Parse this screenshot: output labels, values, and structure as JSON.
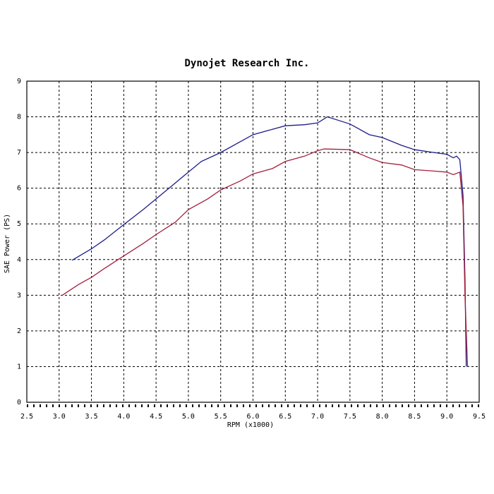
{
  "chart_data": {
    "type": "line",
    "title": "Dynojet Research Inc.",
    "xlabel": "RPM (x1000)",
    "ylabel": "SAE Power (PS)",
    "xlim": [
      2.5,
      9.5
    ],
    "ylim": [
      0,
      9
    ],
    "xticks": [
      2.5,
      {
        "value": 3,
        "label": "3.0"
      },
      3.5,
      {
        "value": 4,
        "label": "4.0"
      },
      4.5,
      {
        "value": 5,
        "label": "5.0"
      },
      5.5,
      {
        "value": 6,
        "label": "6.0"
      },
      6.5,
      {
        "value": 7,
        "label": "7.0"
      },
      7.5,
      {
        "value": 8,
        "label": "8.0"
      },
      8.5,
      {
        "value": 9,
        "label": "9.0"
      },
      9.5
    ],
    "yticks": [
      0,
      1,
      2,
      3,
      4,
      5,
      6,
      7,
      8,
      9
    ],
    "grid": true,
    "series": [
      {
        "color": "#1c1c8a",
        "x": [
          3.2,
          3.5,
          3.7,
          4.0,
          4.3,
          4.5,
          4.8,
          5.0,
          5.2,
          5.5,
          5.8,
          6.0,
          6.3,
          6.5,
          6.8,
          7.0,
          7.15,
          7.5,
          7.8,
          8.0,
          8.3,
          8.5,
          8.8,
          9.0,
          9.1,
          9.15,
          9.2,
          9.25,
          9.28,
          9.3
        ],
        "values": [
          3.98,
          4.3,
          4.55,
          4.98,
          5.4,
          5.7,
          6.15,
          6.45,
          6.75,
          7.0,
          7.3,
          7.5,
          7.65,
          7.75,
          7.78,
          7.83,
          8.0,
          7.8,
          7.5,
          7.42,
          7.2,
          7.08,
          7.0,
          6.95,
          6.85,
          6.9,
          6.8,
          5.8,
          3.5,
          1.0
        ]
      },
      {
        "color": "#a3203c",
        "x": [
          3.05,
          3.3,
          3.5,
          3.7,
          4.0,
          4.3,
          4.5,
          4.8,
          5.0,
          5.3,
          5.5,
          5.8,
          6.0,
          6.3,
          6.5,
          6.8,
          7.0,
          7.1,
          7.5,
          7.8,
          8.0,
          8.3,
          8.5,
          8.8,
          9.0,
          9.1,
          9.2,
          9.25,
          9.28,
          9.32
        ],
        "values": [
          3.0,
          3.3,
          3.5,
          3.75,
          4.1,
          4.45,
          4.7,
          5.05,
          5.4,
          5.7,
          5.95,
          6.2,
          6.4,
          6.55,
          6.75,
          6.9,
          7.05,
          7.1,
          7.08,
          6.85,
          6.72,
          6.65,
          6.52,
          6.48,
          6.45,
          6.38,
          6.45,
          5.5,
          3.0,
          1.0
        ]
      }
    ]
  }
}
